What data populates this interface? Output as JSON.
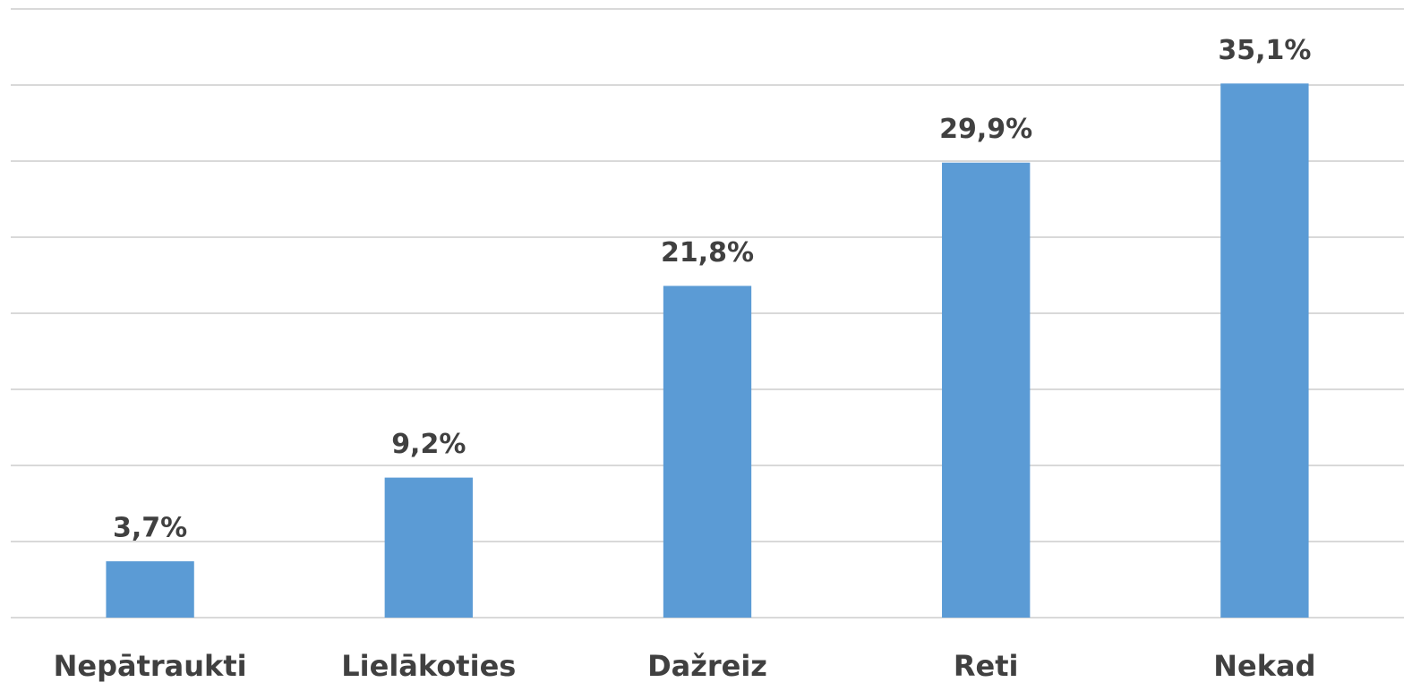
{
  "chart_data": {
    "type": "bar",
    "categories": [
      "Nepātraukti",
      "Lielākoties",
      "Dažreiz",
      "Reti",
      "Nekad"
    ],
    "values": [
      3.7,
      9.2,
      21.8,
      29.9,
      35.1
    ],
    "value_labels": [
      "3,7%",
      "9,2%",
      "21,8%",
      "29,9%",
      "35,1%"
    ],
    "color": "#5b9bd5",
    "ylim": [
      0,
      40
    ],
    "yticks": [
      0,
      5,
      10,
      15,
      20,
      25,
      30,
      35,
      40
    ],
    "grid": true
  }
}
